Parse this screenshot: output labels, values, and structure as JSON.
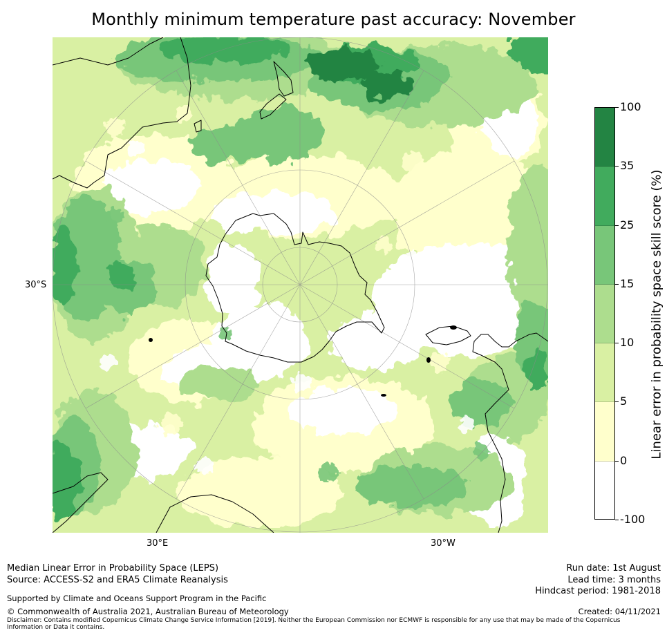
{
  "title": "Monthly minimum temperature past accuracy: November",
  "map": {
    "projection": "south-polar-stereographic",
    "labels": {
      "lat_left": "30°S",
      "lon_bottom_left": "30°E",
      "lon_bottom_right": "30°W"
    }
  },
  "colorbar": {
    "title": "Linear error in probability space skill score (%)",
    "ticks": [
      "100",
      "35",
      "25",
      "15",
      "10",
      "5",
      "0",
      "-100"
    ],
    "bins": [
      {
        "range": "-100 to 0",
        "color": "#ffffff"
      },
      {
        "range": "0 to 5",
        "color": "#ffffcc"
      },
      {
        "range": "5 to 10",
        "color": "#d9f0a3"
      },
      {
        "range": "10 to 15",
        "color": "#addd8e"
      },
      {
        "range": "15 to 25",
        "color": "#78c679"
      },
      {
        "range": "25 to 35",
        "color": "#41ab5d"
      },
      {
        "range": "35 to 100",
        "color": "#238443"
      }
    ]
  },
  "footer": {
    "left": {
      "line1": "Median Linear Error in Probability Space (LEPS)",
      "line2": "Source: ACCESS-S2 and ERA5 Climate Reanalysis",
      "support": "Supported by Climate and Oceans Support Program in the Pacific",
      "copyright": "© Commonwealth of Australia 2021, Australian Bureau of Meteorology",
      "disclaimer": "Disclaimer: Contains modified Copernicus Climate Change Service Information [2019]. Neither the European Commission nor ECMWF is responsible for any use that may be made of the Copernicus Information or Data it contains."
    },
    "right": {
      "run_date": "Run date: 1st August",
      "lead_time": "Lead time: 3 months",
      "hindcast": "Hindcast period: 1981-2018",
      "created": "Created: 04/11/2021"
    }
  }
}
